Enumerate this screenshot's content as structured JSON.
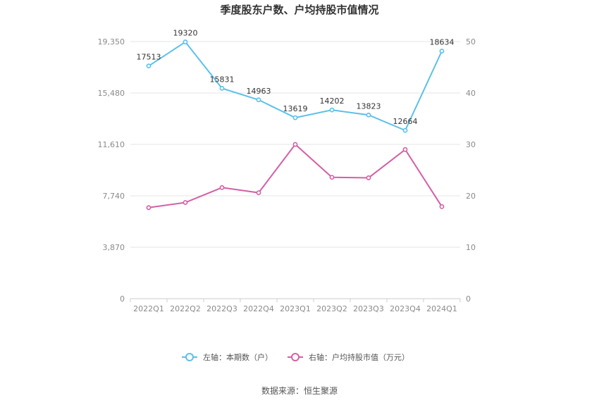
{
  "chart_data": {
    "type": "line",
    "title": "季度股东户数、户均持股市值情况",
    "categories": [
      "2022Q1",
      "2022Q2",
      "2022Q3",
      "2022Q4",
      "2023Q1",
      "2023Q2",
      "2023Q3",
      "2023Q4",
      "2024Q1"
    ],
    "series": [
      {
        "name": "左轴：本期数（户）",
        "axis": "left",
        "color": "#5bc0eb",
        "values": [
          17513,
          19320,
          15831,
          14963,
          13619,
          14202,
          13823,
          12664,
          18634
        ],
        "labels": [
          "17513",
          "19320",
          "15831",
          "14963",
          "13619",
          "14202",
          "13823",
          "12664",
          "18634"
        ]
      },
      {
        "name": "右轴：户均持股市值（万元）",
        "axis": "right",
        "color": "#d45fa6",
        "values": [
          17.7,
          18.7,
          21.6,
          20.6,
          30.0,
          23.6,
          23.5,
          29.0,
          17.9
        ]
      }
    ],
    "left_axis": {
      "ylim": [
        0,
        19350
      ],
      "ticks": [
        0,
        3870,
        7740,
        11610,
        15480,
        19350
      ],
      "tick_labels": [
        "0",
        "3,870",
        "7,740",
        "11,610",
        "15,480",
        "19,350"
      ]
    },
    "right_axis": {
      "ylim": [
        0,
        50
      ],
      "ticks": [
        0,
        10,
        20,
        30,
        40,
        50
      ],
      "tick_labels": [
        "0",
        "10",
        "20",
        "30",
        "40",
        "50"
      ]
    },
    "grid": true,
    "legend_position": "bottom-center",
    "source": "数据来源：恒生聚源"
  }
}
